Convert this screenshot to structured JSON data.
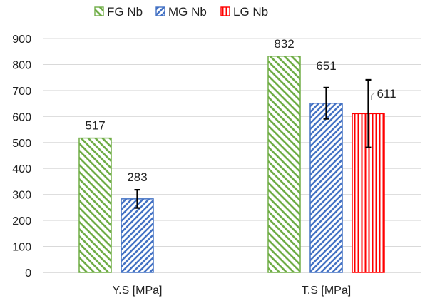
{
  "chart_data": {
    "type": "bar",
    "categories": [
      "Y.S [MPa]",
      "T.S [MPa]"
    ],
    "ylim": [
      0,
      900
    ],
    "yticks": [
      0,
      100,
      200,
      300,
      400,
      500,
      600,
      700,
      800,
      900
    ],
    "grid": true,
    "legend_position": "top",
    "series": [
      {
        "name": "FG Nb",
        "values": [
          517,
          832
        ],
        "errors": [
          null,
          null
        ],
        "color": "#70ad47",
        "hatch": "diagonal-backslash"
      },
      {
        "name": "MG Nb",
        "values": [
          283,
          651
        ],
        "errors": [
          35,
          60
        ],
        "color": "#4472c4",
        "hatch": "diagonal-slash"
      },
      {
        "name": "LG Nb",
        "values": [
          null,
          611
        ],
        "errors": [
          null,
          130
        ],
        "color": "#ff0000",
        "hatch": "vertical"
      }
    ],
    "data_labels": [
      [
        "517",
        "832"
      ],
      [
        "283",
        "651"
      ],
      [
        "",
        "611"
      ]
    ]
  }
}
